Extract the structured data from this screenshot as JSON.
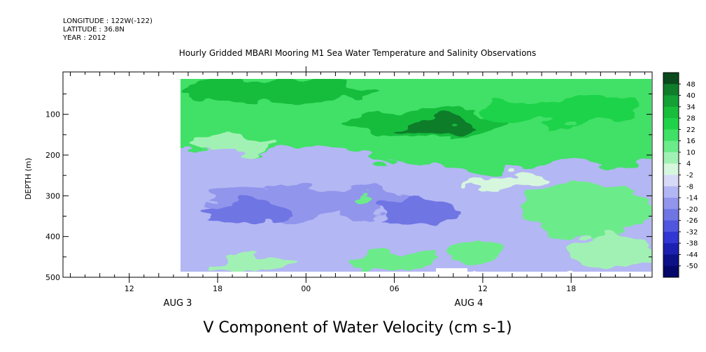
{
  "header": {
    "longitude": "LONGITUDE : 122W(-122)",
    "latitude": "LATITUDE : 36.8N",
    "year": "YEAR : 2012"
  },
  "chart_data": {
    "type": "heatmap",
    "title": "Hourly Gridded MBARI Mooring M1 Sea Water Temperature and Salinity Observations",
    "xlabel": "V Component of Water Velocity (cm s-1)",
    "ylabel": "DEPTH (m)",
    "x_ticks": [
      "12",
      "18",
      "00",
      "06",
      "12",
      "18"
    ],
    "x_date_labels": [
      "AUG 3",
      "AUG 4"
    ],
    "y_ticks": [
      "100",
      "200",
      "300",
      "400",
      "500"
    ],
    "ylim": [
      500,
      0
    ],
    "grid": false,
    "colorbar_levels": [
      "48",
      "40",
      "34",
      "28",
      "22",
      "16",
      "10",
      "4",
      "-2",
      "-8",
      "-14",
      "-20",
      "-26",
      "-32",
      "-38",
      "-44",
      "-50"
    ],
    "colorbar_colors": [
      "#0a4a1c",
      "#107d2a",
      "#14a034",
      "#18bd3c",
      "#1fd348",
      "#3fe166",
      "#6ceb8a",
      "#a2f1b4",
      "#d6f7de",
      "#d7daf7",
      "#b2b6f3",
      "#9195ec",
      "#7075e4",
      "#5056de",
      "#3236d2",
      "#1c20b0",
      "#0d1188",
      "#05086a"
    ],
    "data_extent": {
      "start": "AUG 3 15:00",
      "end": "AUG 4 23:00",
      "depth_top": 20,
      "depth_bottom": 485
    },
    "field_summary": [
      {
        "depth": 50,
        "v": 20
      },
      {
        "depth": 100,
        "v": 22
      },
      {
        "depth": 150,
        "v": 16
      },
      {
        "depth": 200,
        "v": 6
      },
      {
        "depth": 250,
        "v": -4
      },
      {
        "depth": 300,
        "v": -8
      },
      {
        "depth": 350,
        "v": -10
      },
      {
        "depth": 400,
        "v": -6
      },
      {
        "depth": 450,
        "v": 2
      }
    ]
  }
}
